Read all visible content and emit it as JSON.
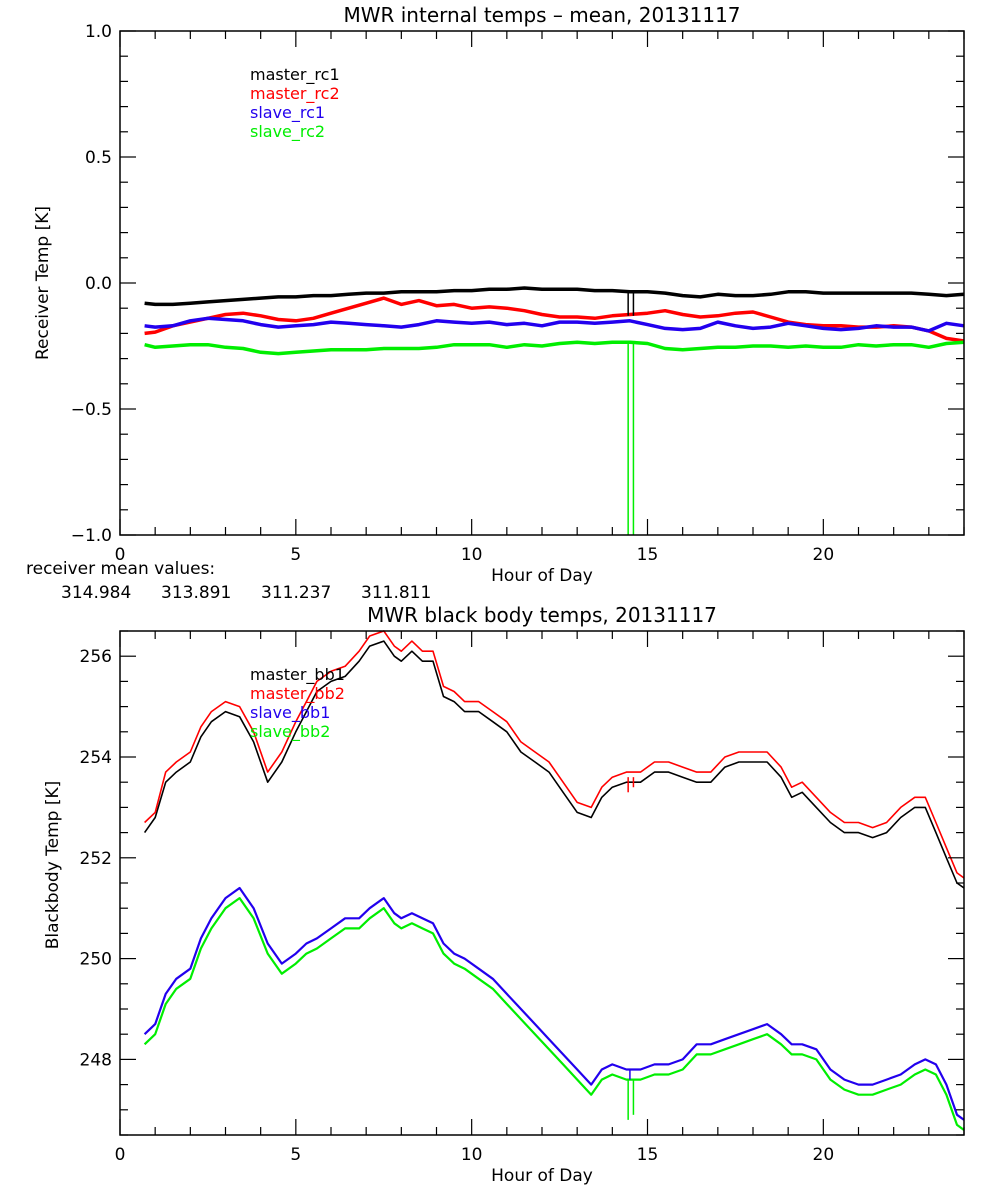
{
  "colors": {
    "black": "#000000",
    "red": "#ff0000",
    "blue": "#2200ee",
    "green": "#00ee00"
  },
  "chart_data": [
    {
      "type": "line",
      "title": "MWR internal temps – mean, 20131117",
      "xlabel": "Hour of Day",
      "ylabel": "Receiver Temp [K]",
      "xlim": [
        0,
        24
      ],
      "ylim": [
        -1.0,
        1.0
      ],
      "xticks": [
        0,
        5,
        10,
        15,
        20
      ],
      "xtick_labels": [
        "0",
        "5",
        "10",
        "15",
        "20"
      ],
      "x_minor_step": 1,
      "yticks": [
        -1.0,
        -0.5,
        0.0,
        0.5,
        1.0
      ],
      "ytick_labels": [
        "−1.0",
        "−0.5",
        "0.0",
        "0.5",
        "1.0"
      ],
      "y_minor_step": 0.1,
      "grid": false,
      "legend_position": "top-left",
      "x": [
        0.7,
        1.0,
        1.5,
        2.0,
        2.5,
        3.0,
        3.5,
        4.0,
        4.5,
        5.0,
        5.5,
        6.0,
        6.5,
        7.0,
        7.5,
        8.0,
        8.5,
        9.0,
        9.5,
        10.0,
        10.5,
        11.0,
        11.5,
        12.0,
        12.5,
        13.0,
        13.5,
        14.0,
        14.5,
        15.0,
        15.5,
        16.0,
        16.5,
        17.0,
        17.5,
        18.0,
        18.5,
        19.0,
        19.5,
        20.0,
        20.5,
        21.0,
        21.5,
        22.0,
        22.5,
        23.0,
        23.5,
        24.0
      ],
      "series": [
        {
          "name": "master_rc1",
          "color_key": "black",
          "values": [
            -0.08,
            -0.085,
            -0.085,
            -0.08,
            -0.075,
            -0.07,
            -0.065,
            -0.06,
            -0.055,
            -0.055,
            -0.05,
            -0.05,
            -0.045,
            -0.04,
            -0.04,
            -0.035,
            -0.035,
            -0.035,
            -0.03,
            -0.03,
            -0.025,
            -0.025,
            -0.02,
            -0.025,
            -0.025,
            -0.025,
            -0.03,
            -0.03,
            -0.035,
            -0.035,
            -0.04,
            -0.05,
            -0.055,
            -0.045,
            -0.05,
            -0.05,
            -0.045,
            -0.035,
            -0.035,
            -0.04,
            -0.04,
            -0.04,
            -0.04,
            -0.04,
            -0.04,
            -0.045,
            -0.05,
            -0.045
          ]
        },
        {
          "name": "master_rc2",
          "color_key": "red",
          "values": [
            -0.2,
            -0.195,
            -0.17,
            -0.155,
            -0.14,
            -0.125,
            -0.12,
            -0.13,
            -0.145,
            -0.15,
            -0.14,
            -0.12,
            -0.1,
            -0.08,
            -0.06,
            -0.085,
            -0.07,
            -0.09,
            -0.085,
            -0.1,
            -0.095,
            -0.1,
            -0.11,
            -0.125,
            -0.135,
            -0.135,
            -0.14,
            -0.13,
            -0.125,
            -0.12,
            -0.11,
            -0.125,
            -0.135,
            -0.13,
            -0.12,
            -0.115,
            -0.135,
            -0.155,
            -0.165,
            -0.17,
            -0.17,
            -0.175,
            -0.175,
            -0.17,
            -0.175,
            -0.19,
            -0.22,
            -0.23
          ]
        },
        {
          "name": "slave_rc1",
          "color_key": "blue",
          "values": [
            -0.17,
            -0.175,
            -0.17,
            -0.15,
            -0.14,
            -0.145,
            -0.15,
            -0.165,
            -0.175,
            -0.17,
            -0.165,
            -0.155,
            -0.16,
            -0.165,
            -0.17,
            -0.175,
            -0.165,
            -0.15,
            -0.155,
            -0.16,
            -0.155,
            -0.165,
            -0.16,
            -0.17,
            -0.155,
            -0.155,
            -0.16,
            -0.155,
            -0.15,
            -0.165,
            -0.18,
            -0.185,
            -0.18,
            -0.155,
            -0.17,
            -0.18,
            -0.175,
            -0.16,
            -0.17,
            -0.18,
            -0.185,
            -0.18,
            -0.17,
            -0.175,
            -0.175,
            -0.19,
            -0.16,
            -0.17
          ]
        },
        {
          "name": "slave_rc2",
          "color_key": "green",
          "values": [
            -0.245,
            -0.255,
            -0.25,
            -0.245,
            -0.245,
            -0.255,
            -0.26,
            -0.275,
            -0.28,
            -0.275,
            -0.27,
            -0.265,
            -0.265,
            -0.265,
            -0.26,
            -0.26,
            -0.26,
            -0.255,
            -0.245,
            -0.245,
            -0.245,
            -0.255,
            -0.245,
            -0.25,
            -0.24,
            -0.235,
            -0.24,
            -0.235,
            -0.235,
            -0.24,
            -0.26,
            -0.265,
            -0.26,
            -0.255,
            -0.255,
            -0.25,
            -0.25,
            -0.255,
            -0.25,
            -0.255,
            -0.255,
            -0.245,
            -0.25,
            -0.245,
            -0.245,
            -0.255,
            -0.24,
            -0.235
          ]
        }
      ],
      "spikes": [
        {
          "series": "master_rc1",
          "x": 14.45,
          "from": -0.03,
          "to": -0.13
        },
        {
          "series": "master_rc1",
          "x": 14.6,
          "from": -0.03,
          "to": -0.13
        },
        {
          "series": "slave_rc2",
          "x": 14.45,
          "from": -0.24,
          "to": -1.0
        },
        {
          "series": "slave_rc2",
          "x": 14.6,
          "from": -0.24,
          "to": -1.0
        }
      ],
      "annotation": {
        "label": "receiver mean values:",
        "values": [
          {
            "text": "314.984",
            "color_key": "black"
          },
          {
            "text": "313.891",
            "color_key": "red"
          },
          {
            "text": "311.237",
            "color_key": "blue"
          },
          {
            "text": "311.811",
            "color_key": "green"
          }
        ]
      }
    },
    {
      "type": "line",
      "title": "MWR black body temps, 20131117",
      "xlabel": "Hour of Day",
      "ylabel": "Blackbody Temp [K]",
      "xlim": [
        0,
        24
      ],
      "ylim": [
        246.5,
        256.5
      ],
      "xticks": [
        0,
        5,
        10,
        15,
        20
      ],
      "xtick_labels": [
        "0",
        "5",
        "10",
        "15",
        "20"
      ],
      "x_minor_step": 1,
      "yticks": [
        248,
        250,
        252,
        254,
        256
      ],
      "ytick_labels": [
        "248",
        "250",
        "252",
        "254",
        "256"
      ],
      "y_minor_step": 0.5,
      "grid": false,
      "legend_position": "top-left",
      "x": [
        0.7,
        1.0,
        1.3,
        1.6,
        2.0,
        2.3,
        2.6,
        3.0,
        3.4,
        3.8,
        4.2,
        4.6,
        5.0,
        5.3,
        5.6,
        6.0,
        6.4,
        6.8,
        7.1,
        7.5,
        7.8,
        8.0,
        8.3,
        8.6,
        8.9,
        9.2,
        9.5,
        9.8,
        10.2,
        10.6,
        11.0,
        11.4,
        11.8,
        12.2,
        12.6,
        13.0,
        13.4,
        13.7,
        14.0,
        14.4,
        14.8,
        15.2,
        15.6,
        16.0,
        16.4,
        16.8,
        17.2,
        17.6,
        18.0,
        18.4,
        18.8,
        19.1,
        19.4,
        19.8,
        20.2,
        20.6,
        21.0,
        21.4,
        21.8,
        22.2,
        22.6,
        22.9,
        23.2,
        23.5,
        23.8,
        24.0
      ],
      "series": [
        {
          "name": "master_bb1",
          "color_key": "black",
          "values": [
            252.5,
            252.8,
            253.5,
            253.7,
            253.9,
            254.4,
            254.7,
            254.9,
            254.8,
            254.3,
            253.5,
            253.9,
            254.5,
            254.9,
            255.3,
            255.5,
            255.6,
            255.9,
            256.2,
            256.3,
            256.0,
            255.9,
            256.1,
            255.9,
            255.9,
            255.2,
            255.1,
            254.9,
            254.9,
            254.7,
            254.5,
            254.1,
            253.9,
            253.7,
            253.3,
            252.9,
            252.8,
            253.2,
            253.4,
            253.5,
            253.5,
            253.7,
            253.7,
            253.6,
            253.5,
            253.5,
            253.8,
            253.9,
            253.9,
            253.9,
            253.6,
            253.2,
            253.3,
            253.0,
            252.7,
            252.5,
            252.5,
            252.4,
            252.5,
            252.8,
            253.0,
            253.0,
            252.5,
            252.0,
            251.5,
            251.4
          ]
        },
        {
          "name": "master_bb2",
          "color_key": "red",
          "values": [
            252.7,
            252.9,
            253.7,
            253.9,
            254.1,
            254.6,
            254.9,
            255.1,
            255.0,
            254.5,
            253.7,
            254.1,
            254.7,
            255.1,
            255.5,
            255.7,
            255.8,
            256.1,
            256.4,
            256.5,
            256.2,
            256.1,
            256.3,
            256.1,
            256.1,
            255.4,
            255.3,
            255.1,
            255.1,
            254.9,
            254.7,
            254.3,
            254.1,
            253.9,
            253.5,
            253.1,
            253.0,
            253.4,
            253.6,
            253.7,
            253.7,
            253.9,
            253.9,
            253.8,
            253.7,
            253.7,
            254.0,
            254.1,
            254.1,
            254.1,
            253.8,
            253.4,
            253.5,
            253.2,
            252.9,
            252.7,
            252.7,
            252.6,
            252.7,
            253.0,
            253.2,
            253.2,
            252.7,
            252.2,
            251.7,
            251.6
          ]
        },
        {
          "name": "slave_bb1",
          "color_key": "blue",
          "values": [
            248.5,
            248.7,
            249.3,
            249.6,
            249.8,
            250.4,
            250.8,
            251.2,
            251.4,
            251.0,
            250.3,
            249.9,
            250.1,
            250.3,
            250.4,
            250.6,
            250.8,
            250.8,
            251.0,
            251.2,
            250.9,
            250.8,
            250.9,
            250.8,
            250.7,
            250.3,
            250.1,
            250.0,
            249.8,
            249.6,
            249.3,
            249.0,
            248.7,
            248.4,
            248.1,
            247.8,
            247.5,
            247.8,
            247.9,
            247.8,
            247.8,
            247.9,
            247.9,
            248.0,
            248.3,
            248.3,
            248.4,
            248.5,
            248.6,
            248.7,
            248.5,
            248.3,
            248.3,
            248.2,
            247.8,
            247.6,
            247.5,
            247.5,
            247.6,
            247.7,
            247.9,
            248.0,
            247.9,
            247.5,
            246.9,
            246.8
          ]
        },
        {
          "name": "slave_bb2",
          "color_key": "green",
          "values": [
            248.3,
            248.5,
            249.1,
            249.4,
            249.6,
            250.2,
            250.6,
            251.0,
            251.2,
            250.8,
            250.1,
            249.7,
            249.9,
            250.1,
            250.2,
            250.4,
            250.6,
            250.6,
            250.8,
            251.0,
            250.7,
            250.6,
            250.7,
            250.6,
            250.5,
            250.1,
            249.9,
            249.8,
            249.6,
            249.4,
            249.1,
            248.8,
            248.5,
            248.2,
            247.9,
            247.6,
            247.3,
            247.6,
            247.7,
            247.6,
            247.6,
            247.7,
            247.7,
            247.8,
            248.1,
            248.1,
            248.2,
            248.3,
            248.4,
            248.5,
            248.3,
            248.1,
            248.1,
            248.0,
            247.6,
            247.4,
            247.3,
            247.3,
            247.4,
            247.5,
            247.7,
            247.8,
            247.7,
            247.3,
            246.7,
            246.6
          ]
        }
      ],
      "spikes": [
        {
          "series": "master_bb2",
          "x": 14.45,
          "from": 253.6,
          "to": 253.3
        },
        {
          "series": "master_bb2",
          "x": 14.6,
          "from": 253.6,
          "to": 253.4
        },
        {
          "series": "slave_bb2",
          "x": 14.45,
          "from": 247.6,
          "to": 246.8
        },
        {
          "series": "slave_bb2",
          "x": 14.6,
          "from": 247.6,
          "to": 246.9
        },
        {
          "series": "slave_bb1",
          "x": 14.5,
          "from": 247.8,
          "to": 247.6
        }
      ]
    }
  ]
}
